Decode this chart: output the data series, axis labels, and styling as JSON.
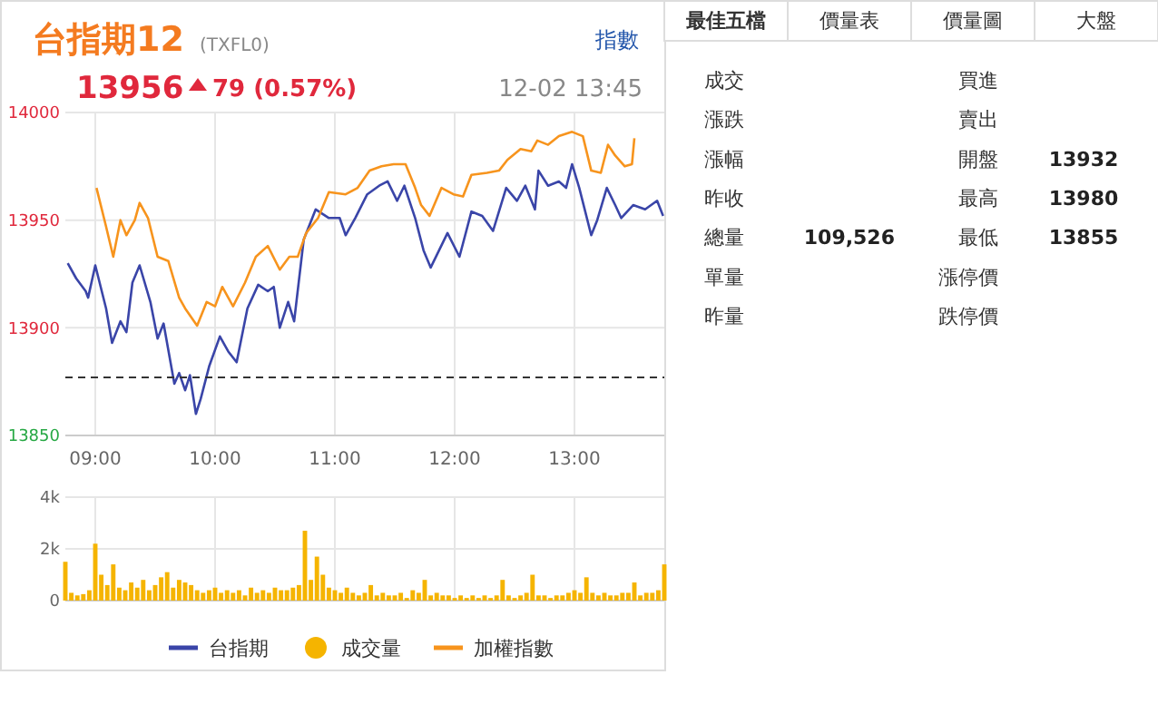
{
  "chart_data": [
    {
      "type": "line",
      "title": "台指期12",
      "subtitle": "(TXFL0)",
      "annotations": [
        "13956",
        "79 (0.57%)",
        "12-02 13:45",
        "指數"
      ],
      "xlim": [
        8.75,
        13.75
      ],
      "xticks": [
        {
          "value": 9,
          "label": "09:00"
        },
        {
          "value": 10,
          "label": "10:00"
        },
        {
          "value": 11,
          "label": "11:00"
        },
        {
          "value": 12,
          "label": "12:00"
        },
        {
          "value": 13,
          "label": "13:00"
        }
      ],
      "ylim": [
        13850,
        14000
      ],
      "yticks": [
        13850,
        13900,
        13950,
        14000
      ],
      "grid": true,
      "legend": "bottom",
      "line_style": "solid",
      "marker": "none",
      "ref_lines": [
        {
          "axis": "y",
          "value": 13877,
          "color": "#333333",
          "line_style": "dashed"
        }
      ],
      "series": [
        {
          "name": "台指期",
          "color": "#3a45a8",
          "x": [
            8.77,
            8.84,
            8.92,
            8.94,
            9.0,
            9.09,
            9.14,
            9.21,
            9.26,
            9.31,
            9.37,
            9.46,
            9.52,
            9.57,
            9.66,
            9.7,
            9.75,
            9.79,
            9.84,
            9.88,
            9.95,
            10.04,
            10.11,
            10.18,
            10.27,
            10.36,
            10.44,
            10.49,
            10.54,
            10.61,
            10.66,
            10.74,
            10.84,
            10.95,
            11.04,
            11.09,
            11.17,
            11.27,
            11.37,
            11.44,
            11.52,
            11.58,
            11.67,
            11.74,
            11.8,
            11.87,
            11.94,
            12.04,
            12.14,
            12.23,
            12.32,
            12.43,
            12.52,
            12.59,
            12.67,
            12.7,
            12.78,
            12.87,
            12.93,
            12.98,
            13.04,
            13.14,
            13.19,
            13.27,
            13.34,
            13.39,
            13.49,
            13.59,
            13.69,
            13.74
          ],
          "values": [
            13930,
            13923,
            13917,
            13914,
            13929,
            13909,
            13893,
            13903,
            13898,
            13921,
            13929,
            13912,
            13895,
            13902,
            13874,
            13879,
            13871,
            13878,
            13860,
            13867,
            13882,
            13896,
            13889,
            13884,
            13909,
            13920,
            13917,
            13919,
            13900,
            13912,
            13903,
            13941,
            13955,
            13951,
            13951,
            13943,
            13951,
            13962,
            13966,
            13968,
            13959,
            13966,
            13951,
            13936,
            13928,
            13936,
            13944,
            13933,
            13954,
            13952,
            13945,
            13965,
            13959,
            13966,
            13955,
            13973,
            13966,
            13968,
            13965,
            13976,
            13965,
            13943,
            13950,
            13965,
            13957,
            13951,
            13957,
            13955,
            13959,
            13952
          ]
        },
        {
          "name": "加權指數",
          "color": "#f7941d",
          "x": [
            9.01,
            9.09,
            9.15,
            9.21,
            9.26,
            9.33,
            9.37,
            9.44,
            9.52,
            9.61,
            9.7,
            9.75,
            9.85,
            9.93,
            10.0,
            10.06,
            10.15,
            10.25,
            10.34,
            10.44,
            10.54,
            10.62,
            10.69,
            10.76,
            10.86,
            10.95,
            11.09,
            11.19,
            11.29,
            11.39,
            11.49,
            11.59,
            11.67,
            11.72,
            11.79,
            11.89,
            11.99,
            12.07,
            12.14,
            12.27,
            12.37,
            12.44,
            12.55,
            12.64,
            12.69,
            12.78,
            12.87,
            12.98,
            13.07,
            13.14,
            13.22,
            13.28,
            13.34,
            13.42,
            13.48,
            13.5
          ],
          "values": [
            13965,
            13947,
            13933,
            13950,
            13943,
            13950,
            13958,
            13951,
            13933,
            13931,
            13914,
            13909,
            13901,
            13912,
            13910,
            13919,
            13910,
            13921,
            13933,
            13938,
            13927,
            13933,
            13933,
            13944,
            13951,
            13963,
            13962,
            13965,
            13973,
            13975,
            13976,
            13976,
            13965,
            13957,
            13952,
            13965,
            13962,
            13961,
            13971,
            13972,
            13973,
            13978,
            13983,
            13982,
            13987,
            13985,
            13989,
            13991,
            13989,
            13973,
            13972,
            13985,
            13980,
            13975,
            13976,
            13988
          ]
        }
      ]
    },
    {
      "type": "bar",
      "xlim": [
        8.75,
        13.75
      ],
      "xticks": [
        {
          "value": 9,
          "label": null
        },
        {
          "value": 10,
          "label": null
        },
        {
          "value": 11,
          "label": null
        },
        {
          "value": 12,
          "label": null
        },
        {
          "value": 13,
          "label": null
        }
      ],
      "ylim": [
        0,
        4000
      ],
      "yticks": [
        {
          "value": 0,
          "label": "0"
        },
        {
          "value": 2000,
          "label": "2k"
        },
        {
          "value": 4000,
          "label": "4k"
        }
      ],
      "grid": true,
      "legend": "bottom",
      "tick_labels": "y",
      "x": [
        8.75,
        8.8,
        8.85,
        8.9,
        8.95,
        9.0,
        9.05,
        9.1,
        9.15,
        9.2,
        9.25,
        9.3,
        9.35,
        9.4,
        9.45,
        9.5,
        9.55,
        9.6,
        9.65,
        9.7,
        9.75,
        9.8,
        9.85,
        9.9,
        9.95,
        10.0,
        10.05,
        10.1,
        10.15,
        10.2,
        10.25,
        10.3,
        10.35,
        10.4,
        10.45,
        10.5,
        10.55,
        10.6,
        10.65,
        10.7,
        10.75,
        10.8,
        10.85,
        10.9,
        10.95,
        11.0,
        11.05,
        11.1,
        11.15,
        11.2,
        11.25,
        11.3,
        11.35,
        11.4,
        11.45,
        11.5,
        11.55,
        11.6,
        11.65,
        11.7,
        11.75,
        11.8,
        11.85,
        11.9,
        11.95,
        12.0,
        12.05,
        12.1,
        12.15,
        12.2,
        12.25,
        12.3,
        12.35,
        12.4,
        12.45,
        12.5,
        12.55,
        12.6,
        12.65,
        12.7,
        12.75,
        12.8,
        12.85,
        12.9,
        12.95,
        13.0,
        13.05,
        13.1,
        13.15,
        13.2,
        13.25,
        13.3,
        13.35,
        13.4,
        13.45,
        13.5,
        13.55,
        13.6,
        13.65,
        13.7,
        13.75
      ],
      "series": [
        {
          "name": "成交量",
          "color": "#f5b400",
          "values": [
            1500,
            300,
            200,
            250,
            400,
            2200,
            1000,
            600,
            1400,
            500,
            400,
            700,
            500,
            800,
            400,
            600,
            900,
            1100,
            500,
            800,
            700,
            600,
            400,
            300,
            400,
            500,
            300,
            400,
            300,
            400,
            200,
            500,
            300,
            400,
            300,
            500,
            400,
            400,
            500,
            600,
            2700,
            800,
            1700,
            1000,
            500,
            400,
            300,
            500,
            300,
            200,
            300,
            600,
            200,
            300,
            200,
            200,
            300,
            100,
            400,
            300,
            800,
            200,
            300,
            200,
            200,
            100,
            200,
            100,
            200,
            100,
            200,
            100,
            200,
            800,
            200,
            100,
            200,
            300,
            1000,
            200,
            200,
            100,
            200,
            200,
            300,
            400,
            300,
            900,
            300,
            200,
            300,
            200,
            200,
            300,
            300,
            700,
            200,
            300,
            300,
            400,
            1400
          ]
        }
      ]
    },
    {
      "type": "other",
      "annotations": [
        "最佳五檔",
        "價量表",
        "價量圖",
        "大盤",
        "成交",
        "漲跌",
        "漲幅",
        "昨收",
        "總量",
        "單量",
        "昨量",
        "109,526",
        "買進",
        "賣出",
        "開盤",
        "最高",
        "最低",
        "漲停價",
        "跌停價",
        "13932",
        "13980",
        "13855"
      ]
    }
  ]
}
